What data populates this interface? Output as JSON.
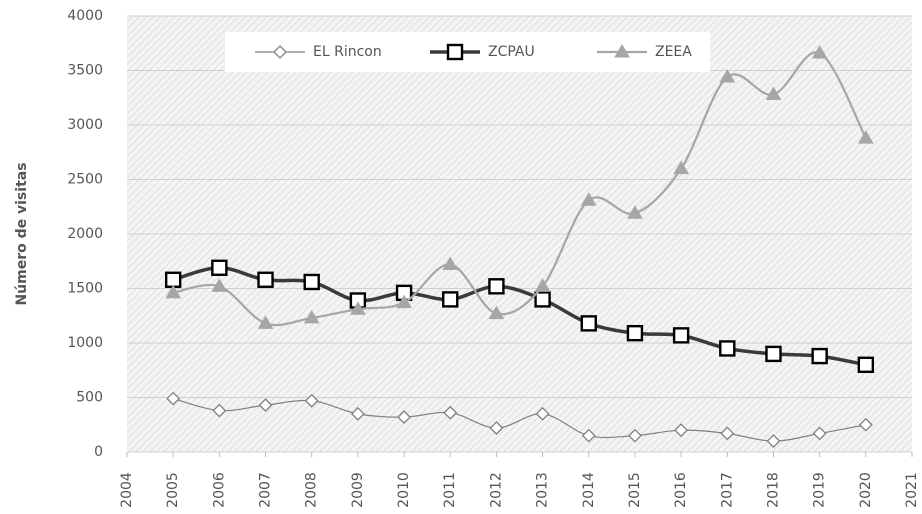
{
  "chart_data": {
    "type": "line",
    "y_label": "Número de visitas",
    "x": [
      2005,
      2006,
      2007,
      2008,
      2009,
      2010,
      2011,
      2012,
      2013,
      2014,
      2015,
      2016,
      2017,
      2018,
      2019,
      2020
    ],
    "series": [
      {
        "name": "EL Rincon",
        "color": "#808080",
        "marker": "diamond",
        "width": 1.2,
        "values": [
          490,
          380,
          430,
          470,
          350,
          320,
          360,
          220,
          350,
          150,
          150,
          200,
          170,
          100,
          170,
          250
        ]
      },
      {
        "name": "ZCPAU",
        "color": "#3a3a3a",
        "marker": "square",
        "width": 3.5,
        "values": [
          1580,
          1690,
          1580,
          1560,
          1390,
          1460,
          1400,
          1520,
          1400,
          1180,
          1090,
          1070,
          950,
          900,
          880,
          800
        ]
      },
      {
        "name": "ZEEA",
        "color": "#a6a6a6",
        "marker": "triangle",
        "width": 2.2,
        "values": [
          1460,
          1520,
          1180,
          1230,
          1310,
          1370,
          1720,
          1270,
          1520,
          2310,
          2190,
          2600,
          3440,
          3280,
          3660,
          2880
        ]
      }
    ],
    "xlim": [
      2004,
      2021
    ],
    "xticks": [
      2004,
      2005,
      2006,
      2007,
      2008,
      2009,
      2010,
      2011,
      2012,
      2013,
      2014,
      2015,
      2016,
      2017,
      2018,
      2019,
      2020,
      2021
    ],
    "ylim": [
      0,
      4000
    ],
    "yticks": [
      0,
      500,
      1000,
      1500,
      2000,
      2500,
      3000,
      3500,
      4000
    ],
    "grid": true,
    "legend": "top"
  }
}
